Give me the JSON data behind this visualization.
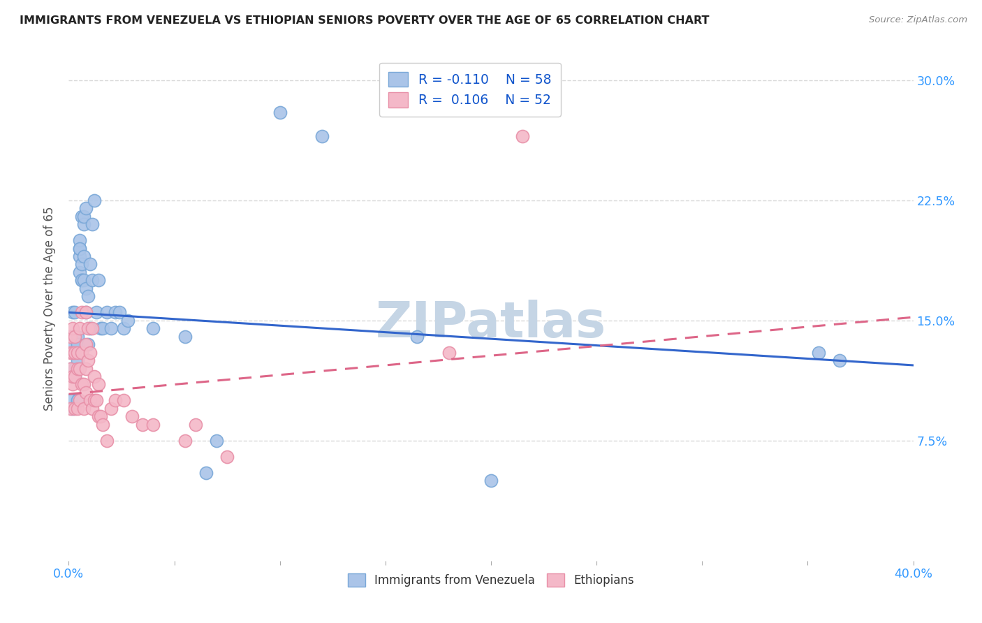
{
  "title": "IMMIGRANTS FROM VENEZUELA VS ETHIOPIAN SENIORS POVERTY OVER THE AGE OF 65 CORRELATION CHART",
  "source": "Source: ZipAtlas.com",
  "ylabel": "Seniors Poverty Over the Age of 65",
  "ytick_vals": [
    0.075,
    0.15,
    0.225,
    0.3
  ],
  "ytick_labels": [
    "7.5%",
    "15.0%",
    "22.5%",
    "30.0%"
  ],
  "xlim": [
    0.0,
    0.4
  ],
  "ylim": [
    0.0,
    0.315
  ],
  "background_color": "#ffffff",
  "grid_color": "#d8d8d8",
  "venezuela_color": "#aac4e8",
  "venezuela_edge": "#7aa8d8",
  "ethiopia_color": "#f4b8c8",
  "ethiopia_edge": "#e890a8",
  "R_venezuela": -0.11,
  "N_venezuela": 58,
  "R_ethiopia": 0.106,
  "N_ethiopia": 52,
  "legend_label_venezuela": "Immigrants from Venezuela",
  "legend_label_ethiopia": "Ethiopians",
  "ven_line_x0": 0.0,
  "ven_line_y0": 0.155,
  "ven_line_x1": 0.4,
  "ven_line_y1": 0.122,
  "eth_line_x0": 0.0,
  "eth_line_y0": 0.104,
  "eth_line_x1": 0.4,
  "eth_line_y1": 0.152,
  "venezuela_x": [
    0.001,
    0.001,
    0.001,
    0.002,
    0.002,
    0.002,
    0.002,
    0.003,
    0.003,
    0.003,
    0.003,
    0.004,
    0.004,
    0.004,
    0.004,
    0.005,
    0.005,
    0.005,
    0.005,
    0.005,
    0.006,
    0.006,
    0.006,
    0.006,
    0.007,
    0.007,
    0.007,
    0.007,
    0.008,
    0.008,
    0.008,
    0.009,
    0.009,
    0.01,
    0.01,
    0.011,
    0.011,
    0.012,
    0.013,
    0.014,
    0.015,
    0.016,
    0.018,
    0.02,
    0.022,
    0.024,
    0.026,
    0.028,
    0.04,
    0.055,
    0.065,
    0.07,
    0.1,
    0.12,
    0.165,
    0.2,
    0.355,
    0.365
  ],
  "venezuela_y": [
    0.14,
    0.1,
    0.12,
    0.095,
    0.13,
    0.155,
    0.135,
    0.115,
    0.14,
    0.155,
    0.12,
    0.1,
    0.125,
    0.14,
    0.135,
    0.18,
    0.19,
    0.195,
    0.2,
    0.195,
    0.175,
    0.185,
    0.175,
    0.215,
    0.19,
    0.21,
    0.215,
    0.175,
    0.155,
    0.17,
    0.22,
    0.165,
    0.135,
    0.185,
    0.145,
    0.175,
    0.21,
    0.225,
    0.155,
    0.175,
    0.145,
    0.145,
    0.155,
    0.145,
    0.155,
    0.155,
    0.145,
    0.15,
    0.145,
    0.14,
    0.055,
    0.075,
    0.28,
    0.265,
    0.14,
    0.05,
    0.13,
    0.125
  ],
  "ethiopia_x": [
    0.001,
    0.001,
    0.001,
    0.001,
    0.002,
    0.002,
    0.002,
    0.002,
    0.003,
    0.003,
    0.003,
    0.003,
    0.004,
    0.004,
    0.004,
    0.005,
    0.005,
    0.005,
    0.006,
    0.006,
    0.006,
    0.007,
    0.007,
    0.008,
    0.008,
    0.008,
    0.008,
    0.009,
    0.009,
    0.01,
    0.01,
    0.011,
    0.011,
    0.012,
    0.012,
    0.013,
    0.014,
    0.014,
    0.015,
    0.016,
    0.018,
    0.02,
    0.022,
    0.026,
    0.03,
    0.035,
    0.04,
    0.055,
    0.06,
    0.075,
    0.18,
    0.215
  ],
  "ethiopia_y": [
    0.095,
    0.13,
    0.12,
    0.14,
    0.11,
    0.13,
    0.115,
    0.145,
    0.095,
    0.115,
    0.14,
    0.13,
    0.12,
    0.095,
    0.13,
    0.1,
    0.12,
    0.145,
    0.11,
    0.13,
    0.155,
    0.095,
    0.11,
    0.12,
    0.105,
    0.135,
    0.155,
    0.125,
    0.145,
    0.1,
    0.13,
    0.095,
    0.145,
    0.1,
    0.115,
    0.1,
    0.09,
    0.11,
    0.09,
    0.085,
    0.075,
    0.095,
    0.1,
    0.1,
    0.09,
    0.085,
    0.085,
    0.075,
    0.085,
    0.065,
    0.13,
    0.265
  ],
  "watermark": "ZIPatlas",
  "watermark_color": "#c5d5e5",
  "watermark_fontsize": 52
}
